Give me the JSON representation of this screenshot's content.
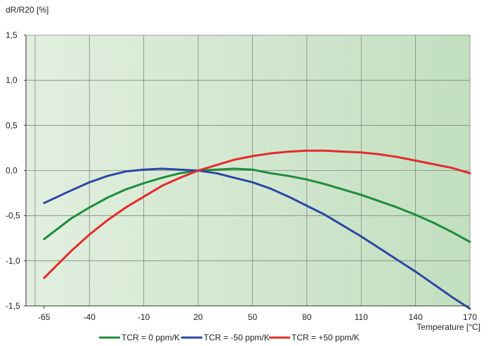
{
  "chart_data": {
    "type": "line",
    "title": "",
    "ylabel": "dR/R20 [%]",
    "xlabel": "Temperature [°C]",
    "xlim": [
      -75,
      170
    ],
    "ylim": [
      -1.5,
      1.5
    ],
    "x_ticks": [
      -65,
      -40,
      -10,
      20,
      50,
      80,
      110,
      140,
      170
    ],
    "x_tick_labels": [
      "-65",
      "-40",
      "-10",
      "20",
      "50",
      "80",
      "110",
      "140",
      "170"
    ],
    "x_grid": [
      -70,
      -40,
      -10,
      20,
      50,
      80,
      110,
      140,
      170
    ],
    "y_ticks": [
      -1.5,
      -1.0,
      -0.5,
      0.0,
      0.5,
      1.0,
      1.5
    ],
    "y_tick_labels": [
      "-1,5",
      "-1,0",
      "-0,5",
      "0,0",
      "0,5",
      "1,0",
      "1,5"
    ],
    "grid": true,
    "legend_position": "bottom",
    "series": [
      {
        "name": "TCR = 0 ppm/K",
        "color": "#1e8c3a",
        "x": [
          -65,
          -50,
          -40,
          -30,
          -20,
          -10,
          0,
          10,
          20,
          30,
          40,
          50,
          60,
          70,
          80,
          90,
          100,
          110,
          120,
          130,
          140,
          150,
          160,
          170
        ],
        "values": [
          -0.76,
          -0.53,
          -0.41,
          -0.3,
          -0.21,
          -0.14,
          -0.08,
          -0.03,
          0.0,
          0.01,
          0.02,
          0.01,
          -0.03,
          -0.06,
          -0.1,
          -0.15,
          -0.21,
          -0.27,
          -0.34,
          -0.41,
          -0.49,
          -0.58,
          -0.68,
          -0.79
        ]
      },
      {
        "name": "TCR =  -50 ppm/K",
        "color": "#2e45a3",
        "x": [
          -65,
          -50,
          -40,
          -30,
          -20,
          -10,
          0,
          10,
          20,
          30,
          40,
          50,
          60,
          70,
          80,
          90,
          100,
          110,
          120,
          130,
          140,
          150,
          160,
          170
        ],
        "values": [
          -0.36,
          -0.22,
          -0.13,
          -0.06,
          -0.01,
          0.01,
          0.02,
          0.01,
          0.0,
          -0.03,
          -0.08,
          -0.13,
          -0.2,
          -0.29,
          -0.39,
          -0.49,
          -0.61,
          -0.73,
          -0.86,
          -0.99,
          -1.12,
          -1.26,
          -1.4,
          -1.53
        ]
      },
      {
        "name": "TCR = +50 ppm/K",
        "color": "#e32b2b",
        "x": [
          -65,
          -50,
          -40,
          -30,
          -20,
          -10,
          0,
          10,
          20,
          30,
          40,
          50,
          60,
          70,
          80,
          90,
          100,
          110,
          120,
          130,
          140,
          150,
          160,
          170
        ],
        "values": [
          -1.19,
          -0.89,
          -0.71,
          -0.55,
          -0.41,
          -0.29,
          -0.17,
          -0.08,
          0.0,
          0.06,
          0.12,
          0.16,
          0.19,
          0.21,
          0.22,
          0.22,
          0.21,
          0.2,
          0.18,
          0.15,
          0.11,
          0.07,
          0.03,
          -0.03
        ]
      }
    ]
  }
}
